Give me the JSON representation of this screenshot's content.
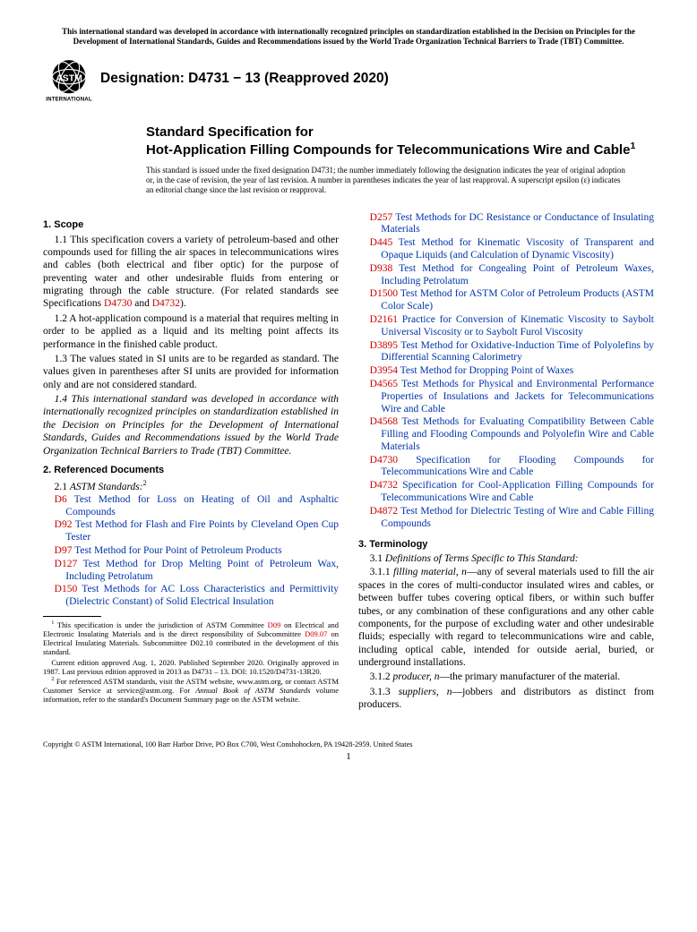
{
  "top_notice": "This international standard was developed in accordance with internationally recognized principles on standardization established in the Decision on Principles for the Development of International Standards, Guides and Recommendations issued by the World Trade Organization Technical Barriers to Trade (TBT) Committee.",
  "designation": "Designation: D4731 − 13 (Reapproved 2020)",
  "title_label": "Standard Specification for",
  "title_main": "Hot-Application Filling Compounds for Telecommunications Wire and Cable",
  "issue_note": "This standard is issued under the fixed designation D4731; the number immediately following the designation indicates the year of original adoption or, in the case of revision, the year of last revision. A number in parentheses indicates the year of last reapproval. A superscript epsilon (ε) indicates an editorial change since the last revision or reapproval.",
  "s1": {
    "head": "1. Scope",
    "p1a": "1.1 This specification covers a variety of petroleum-based and other compounds used for filling the air spaces in telecommunications wires and cables (both electrical and fiber optic) for the purpose of preventing water and other undesirable fluids from entering or migrating through the cable structure. (For related standards see Specifications ",
    "p1b": " and ",
    "p1c": ").",
    "p2": "1.2 A hot-application compound is a material that requires melting in order to be applied as a liquid and its melting point affects its performance in the finished cable product.",
    "p3": "1.3 The values stated in SI units are to be regarded as standard. The values given in parentheses after SI units are provided for information only and are not considered standard.",
    "p4": "1.4 This international standard was developed in accordance with internationally recognized principles on standardization established in the Decision on Principles for the Development of International Standards, Guides and Recommendations issued by the World Trade Organization Technical Barriers to Trade (TBT) Committee."
  },
  "ref_D4730": "D4730",
  "ref_D4732": "D4732",
  "s2": {
    "head": "2. Referenced Documents",
    "sub": "2.1 ",
    "sub_italic": "ASTM Standards:"
  },
  "refs_left": [
    {
      "code": "D6",
      "txt": "Test Method for Loss on Heating of Oil and Asphaltic Compounds"
    },
    {
      "code": "D92",
      "txt": "Test Method for Flash and Fire Points by Cleveland Open Cup Tester"
    },
    {
      "code": "D97",
      "txt": "Test Method for Pour Point of Petroleum Products"
    },
    {
      "code": "D127",
      "txt": "Test Method for Drop Melting Point of Petroleum Wax, Including Petrolatum"
    },
    {
      "code": "D150",
      "txt": "Test Methods for AC Loss Characteristics and Permittivity (Dielectric Constant) of Solid Electrical Insulation"
    }
  ],
  "refs_right": [
    {
      "code": "D257",
      "txt": "Test Methods for DC Resistance or Conductance of Insulating Materials"
    },
    {
      "code": "D445",
      "txt": "Test Method for Kinematic Viscosity of Transparent and Opaque Liquids (and Calculation of Dynamic Viscosity)"
    },
    {
      "code": "D938",
      "txt": "Test Method for Congealing Point of Petroleum Waxes, Including Petrolatum"
    },
    {
      "code": "D1500",
      "txt": "Test Method for ASTM Color of Petroleum Products (ASTM Color Scale)"
    },
    {
      "code": "D2161",
      "txt": "Practice for Conversion of Kinematic Viscosity to Saybolt Universal Viscosity or to Saybolt Furol Viscosity"
    },
    {
      "code": "D3895",
      "txt": "Test Method for Oxidative-Induction Time of Polyolefins by Differential Scanning Calorimetry"
    },
    {
      "code": "D3954",
      "txt": "Test Method for Dropping Point of Waxes"
    },
    {
      "code": "D4565",
      "txt": "Test Methods for Physical and Environmental Performance Properties of Insulations and Jackets for Telecommunications Wire and Cable"
    },
    {
      "code": "D4568",
      "txt": "Test Methods for Evaluating Compatibility Between Cable Filling and Flooding Compounds and Polyolefin Wire and Cable Materials"
    },
    {
      "code": "D4730",
      "txt": "Specification for Flooding Compounds for Telecommunications Wire and Cable"
    },
    {
      "code": "D4732",
      "txt": "Specification for Cool-Application Filling Compounds for Telecommunications Wire and Cable"
    },
    {
      "code": "D4872",
      "txt": "Test Method for Dielectric Testing of Wire and Cable Filling Compounds"
    }
  ],
  "s3": {
    "head": "3. Terminology",
    "sub": "3.1 ",
    "sub_italic": "Definitions of Terms Specific to This Standard:",
    "d1_num": "3.1.1 ",
    "d1_term": "filling material, n",
    "d1_txt": "—any of several materials used to fill the air spaces in the cores of multi-conductor insulated wires and cables, or between buffer tubes covering optical fibers, or within such buffer tubes, or any combination of these configurations and any other cable components, for the purpose of excluding water and other undesirable fluids; especially with regard to telecommunications wire and cable, including optical cable, intended for outside aerial, buried, or underground installations.",
    "d2_num": "3.1.2 ",
    "d2_term": "producer, n",
    "d2_txt": "—the primary manufacturer of the material.",
    "d3_num": "3.1.3 ",
    "d3_term": "suppliers, n",
    "d3_txt": "—jobbers and distributors as distinct from producers."
  },
  "fn1a": "This specification is under the jurisdiction of ASTM Committee ",
  "fn1b": " on Electrical and Electronic Insulating Materials and is the direct responsibility of Subcommittee ",
  "fn1c": " on Electrical Insulating Materials. Subcommittee D02.10 contributed in the development of this standard.",
  "fn1_D09": "D09",
  "fn1_D0907": "D09.07",
  "fn1_p2": "Current edition approved Aug. 1, 2020. Published September 2020. Originally approved in 1987. Last previous edition approved in 2013 as D4731 – 13. DOI: 10.1520/D4731-13R20.",
  "fn2a": "For referenced ASTM standards, visit the ASTM website, www.astm.org, or contact ASTM Customer Service at service@astm.org. For ",
  "fn2_italic": "Annual Book of ASTM Standards",
  "fn2b": " volume information, refer to the standard's Document Summary page on the ASTM website.",
  "copyright": "Copyright © ASTM International, 100 Barr Harbor Drive, PO Box C700, West Conshohocken, PA 19428-2959. United States",
  "pagenum": "1"
}
